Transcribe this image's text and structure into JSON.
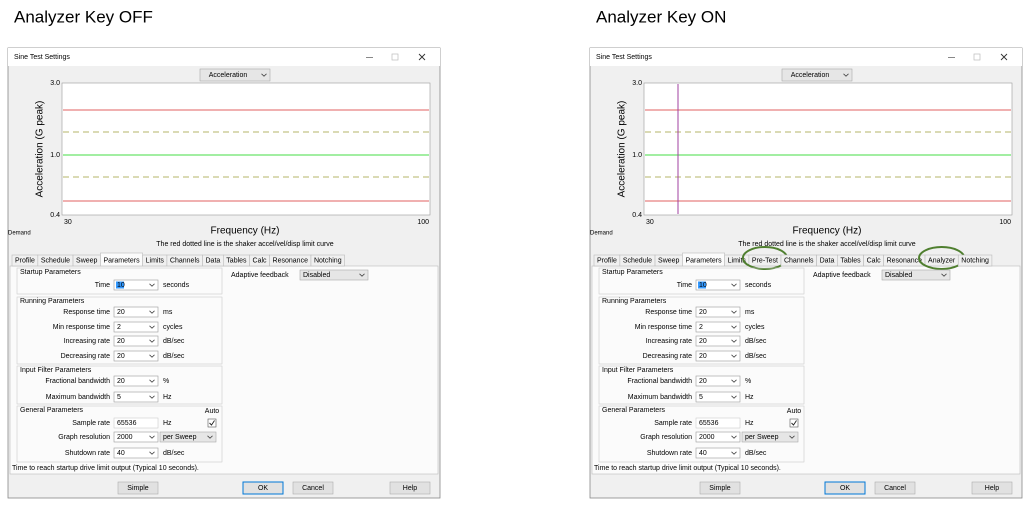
{
  "panels": [
    {
      "heading": "Analyzer Key OFF",
      "heading_color": "#c00000",
      "window_title": "Sine Test Settings",
      "dropdown": "Acceleration",
      "y_axis_label": "Acceleration (G peak)",
      "y_ticks": [
        "3.0",
        "1.0",
        "0.4"
      ],
      "x_ticks": [
        "30",
        "100"
      ],
      "x_axis_label": "Frequency (Hz)",
      "legend_text": "Demand",
      "note": "The red dotted line is the shaker accel/vel/disp limit curve",
      "cursor_line": false,
      "tabs": [
        {
          "label": "Profile"
        },
        {
          "label": "Schedule"
        },
        {
          "label": "Sweep"
        },
        {
          "label": "Parameters",
          "selected": true
        },
        {
          "label": "Limits"
        },
        {
          "label": "Channels"
        },
        {
          "label": "Data"
        },
        {
          "label": "Tables"
        },
        {
          "label": "Calc"
        },
        {
          "label": "Resonance"
        },
        {
          "label": "Notching"
        }
      ],
      "groups": [
        {
          "title": "Startup Parameters",
          "rows": [
            {
              "label": "Time",
              "value": "10",
              "unit": "seconds",
              "selected": true
            }
          ]
        },
        {
          "title": "Running Parameters",
          "rows": [
            {
              "label": "Response time",
              "value": "20",
              "unit": "ms"
            },
            {
              "label": "Min response time",
              "value": "2",
              "unit": "cycles"
            },
            {
              "label": "Increasing rate",
              "value": "20",
              "unit": "dB/sec"
            },
            {
              "label": "Decreasing rate",
              "value": "20",
              "unit": "dB/sec"
            }
          ]
        },
        {
          "title": "Input Filter Parameters",
          "rows": [
            {
              "label": "Fractional bandwidth",
              "value": "20",
              "unit": "%"
            },
            {
              "label": "Maximum bandwidth",
              "value": "5",
              "unit": "Hz"
            }
          ]
        },
        {
          "title": "General Parameters",
          "auto_label": "Auto",
          "rows": [
            {
              "label": "Sample rate",
              "value": "65536",
              "unit": "Hz",
              "disabled": true,
              "checked": true
            },
            {
              "label": "Graph resolution",
              "value": "2000",
              "option": "per Sweep"
            },
            {
              "label": "Shutdown rate",
              "value": "40",
              "unit": "dB/sec"
            }
          ]
        }
      ],
      "adaptive_label": "Adaptive feedback",
      "adaptive_value": "Disabled",
      "status": "Time to reach startup drive limit output (Typical 10 seconds).",
      "buttons": [
        {
          "label": "Simple"
        },
        {
          "label": "OK",
          "default": true
        },
        {
          "label": "Cancel"
        },
        {
          "label": "Help"
        }
      ]
    },
    {
      "heading": "Analyzer Key ON",
      "heading_color": "#00b050",
      "window_title": "Sine Test Settings",
      "dropdown": "Acceleration",
      "y_axis_label": "Acceleration (G peak)",
      "y_ticks": [
        "3.0",
        "1.0",
        "0.4"
      ],
      "x_ticks": [
        "30",
        "100"
      ],
      "x_axis_label": "Frequency (Hz)",
      "legend_text": "Demand",
      "note": "The red dotted line is the shaker accel/vel/disp limit curve",
      "cursor_line": true,
      "tabs": [
        {
          "label": "Profile"
        },
        {
          "label": "Schedule"
        },
        {
          "label": "Sweep"
        },
        {
          "label": "Parameters",
          "selected": true
        },
        {
          "label": "Limits"
        },
        {
          "label": "Pre-Test",
          "circled": true
        },
        {
          "label": "Channels"
        },
        {
          "label": "Data"
        },
        {
          "label": "Tables"
        },
        {
          "label": "Calc"
        },
        {
          "label": "Resonance"
        },
        {
          "label": "Analyzer",
          "circled": true
        },
        {
          "label": "Notching"
        }
      ],
      "groups": [
        {
          "title": "Startup Parameters",
          "rows": [
            {
              "label": "Time",
              "value": "10",
              "unit": "seconds",
              "selected": true
            }
          ]
        },
        {
          "title": "Running Parameters",
          "rows": [
            {
              "label": "Response time",
              "value": "20",
              "unit": "ms"
            },
            {
              "label": "Min response time",
              "value": "2",
              "unit": "cycles"
            },
            {
              "label": "Increasing rate",
              "value": "20",
              "unit": "dB/sec"
            },
            {
              "label": "Decreasing rate",
              "value": "20",
              "unit": "dB/sec"
            }
          ]
        },
        {
          "title": "Input Filter Parameters",
          "rows": [
            {
              "label": "Fractional bandwidth",
              "value": "20",
              "unit": "%"
            },
            {
              "label": "Maximum bandwidth",
              "value": "5",
              "unit": "Hz"
            }
          ]
        },
        {
          "title": "General Parameters",
          "auto_label": "Auto",
          "rows": [
            {
              "label": "Sample rate",
              "value": "65536",
              "unit": "Hz",
              "disabled": true,
              "checked": true
            },
            {
              "label": "Graph resolution",
              "value": "2000",
              "option": "per Sweep"
            },
            {
              "label": "Shutdown rate",
              "value": "40",
              "unit": "dB/sec"
            }
          ]
        }
      ],
      "adaptive_label": "Adaptive feedback",
      "adaptive_value": "Disabled",
      "status": "Time to reach startup drive limit output (Typical 10 seconds).",
      "buttons": [
        {
          "label": "Simple"
        },
        {
          "label": "OK",
          "default": true
        },
        {
          "label": "Cancel"
        },
        {
          "label": "Help"
        }
      ]
    }
  ]
}
